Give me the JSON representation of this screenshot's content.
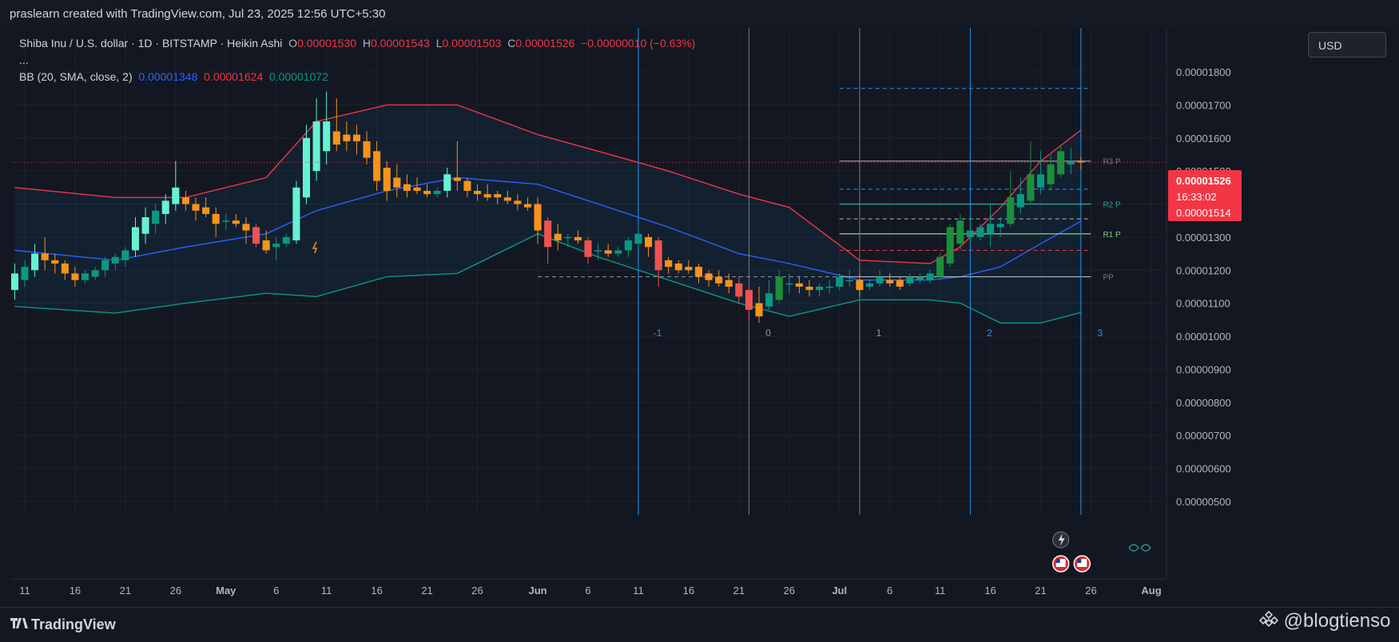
{
  "header": {
    "credit": "praslearn created with TradingView.com, Jul 23, 2025 12:56 UTC+5:30"
  },
  "legend": {
    "title": "Shiba Inu / U.S. dollar · 1D · BITSTAMP · Heikin Ashi",
    "open_label": "O",
    "open": "0.00001530",
    "high_label": "H",
    "high": "0.00001543",
    "low_label": "L",
    "low": "0.00001503",
    "close_label": "C",
    "close": "0.00001526",
    "change": "−0.00000010 (−0.63%)",
    "more": "...",
    "indicator": "BB (20, SMA, close, 2)",
    "bb_basis": "0.00001348",
    "bb_upper": "0.00001624",
    "bb_lower": "0.00001072"
  },
  "currency_button": "USD",
  "price_tag": {
    "price": "0.00001526",
    "countdown": "16:33:02",
    "low_tag": "0.00001514"
  },
  "pivot_labels": {
    "r3": "R3 P",
    "r2": "R2 P",
    "r1": "R1 P",
    "pp": "PP"
  },
  "cycle_labels": [
    "-1",
    "0",
    "1",
    "2",
    "3"
  ],
  "footer": {
    "brand": "TradingView",
    "watermark": "@blogtienso"
  },
  "colors": {
    "bg": "#131722",
    "bull_strong": "#089981",
    "bull": "#26a69a",
    "bull_light": "#66f2d0",
    "bear": "#f7931a",
    "bear_red": "#ef5350",
    "bb_upper": "#f23645",
    "bb_basis": "#2962ff",
    "bb_lower": "#089981",
    "fib_line": "#2196f3"
  },
  "chart_data": {
    "type": "candlestick",
    "title": "Shiba Inu / U.S. dollar · 1D · BITSTAMP · Heikin Ashi",
    "y_axis": {
      "min": 4.5e-06,
      "max": 1.9e-06,
      "tick_labels": [
        "0.00001800",
        "0.00001700",
        "0.00001600",
        "0.00001500",
        "0.00001400",
        "0.00001300",
        "0.00001200",
        "0.00001100",
        "0.00001000",
        "0.00000900",
        "0.00000800",
        "0.00000700",
        "0.00000600",
        "0.00000500"
      ],
      "tick_values": [
        1.8e-05,
        1.7e-05,
        1.6e-05,
        1.5e-05,
        1.4e-05,
        1.3e-05,
        1.2e-05,
        1.1e-05,
        1e-05,
        9e-06,
        8e-06,
        7e-06,
        6e-06,
        5e-06
      ]
    },
    "x_axis": {
      "tick_labels": [
        "11",
        "16",
        "21",
        "26",
        "May",
        "6",
        "11",
        "16",
        "21",
        "26",
        "Jun",
        "6",
        "11",
        "16",
        "21",
        "26",
        "Jul",
        "6",
        "11",
        "16",
        "21",
        "26",
        "Aug"
      ],
      "tick_dates": [
        "2025-04-11",
        "2025-04-16",
        "2025-04-21",
        "2025-04-26",
        "2025-05-01",
        "2025-05-06",
        "2025-05-11",
        "2025-05-16",
        "2025-05-21",
        "2025-05-26",
        "2025-06-01",
        "2025-06-06",
        "2025-06-11",
        "2025-06-16",
        "2025-06-21",
        "2025-06-26",
        "2025-07-01",
        "2025-07-06",
        "2025-07-11",
        "2025-07-16",
        "2025-07-21",
        "2025-07-26",
        "2025-08-01"
      ],
      "range": [
        "2025-04-10",
        "2025-08-01"
      ]
    },
    "candles": [
      {
        "date": "2025-04-10",
        "o": 1.14e-05,
        "h": 1.22e-05,
        "l": 1.11e-05,
        "c": 1.19e-05
      },
      {
        "date": "2025-04-11",
        "o": 1.17e-05,
        "h": 1.23e-05,
        "l": 1.15e-05,
        "c": 1.21e-05
      },
      {
        "date": "2025-04-12",
        "o": 1.2e-05,
        "h": 1.28e-05,
        "l": 1.18e-05,
        "c": 1.25e-05
      },
      {
        "date": "2025-04-13",
        "o": 1.25e-05,
        "h": 1.3e-05,
        "l": 1.2e-05,
        "c": 1.23e-05
      },
      {
        "date": "2025-04-14",
        "o": 1.23e-05,
        "h": 1.25e-05,
        "l": 1.19e-05,
        "c": 1.22e-05
      },
      {
        "date": "2025-04-15",
        "o": 1.22e-05,
        "h": 1.23e-05,
        "l": 1.17e-05,
        "c": 1.19e-05
      },
      {
        "date": "2025-04-16",
        "o": 1.19e-05,
        "h": 1.21e-05,
        "l": 1.15e-05,
        "c": 1.17e-05
      },
      {
        "date": "2025-04-17",
        "o": 1.17e-05,
        "h": 1.2e-05,
        "l": 1.16e-05,
        "c": 1.19e-05
      },
      {
        "date": "2025-04-18",
        "o": 1.18e-05,
        "h": 1.21e-05,
        "l": 1.17e-05,
        "c": 1.2e-05
      },
      {
        "date": "2025-04-19",
        "o": 1.2e-05,
        "h": 1.24e-05,
        "l": 1.18e-05,
        "c": 1.23e-05
      },
      {
        "date": "2025-04-20",
        "o": 1.22e-05,
        "h": 1.25e-05,
        "l": 1.2e-05,
        "c": 1.24e-05
      },
      {
        "date": "2025-04-21",
        "o": 1.23e-05,
        "h": 1.27e-05,
        "l": 1.21e-05,
        "c": 1.26e-05
      },
      {
        "date": "2025-04-22",
        "o": 1.26e-05,
        "h": 1.36e-05,
        "l": 1.24e-05,
        "c": 1.33e-05
      },
      {
        "date": "2025-04-23",
        "o": 1.31e-05,
        "h": 1.39e-05,
        "l": 1.28e-05,
        "c": 1.36e-05
      },
      {
        "date": "2025-04-24",
        "o": 1.34e-05,
        "h": 1.4e-05,
        "l": 1.31e-05,
        "c": 1.38e-05
      },
      {
        "date": "2025-04-25",
        "o": 1.37e-05,
        "h": 1.43e-05,
        "l": 1.34e-05,
        "c": 1.41e-05
      },
      {
        "date": "2025-04-26",
        "o": 1.4e-05,
        "h": 1.53e-05,
        "l": 1.38e-05,
        "c": 1.45e-05
      },
      {
        "date": "2025-04-27",
        "o": 1.42e-05,
        "h": 1.44e-05,
        "l": 1.38e-05,
        "c": 1.4e-05
      },
      {
        "date": "2025-04-28",
        "o": 1.4e-05,
        "h": 1.42e-05,
        "l": 1.35e-05,
        "c": 1.38e-05
      },
      {
        "date": "2025-04-29",
        "o": 1.39e-05,
        "h": 1.42e-05,
        "l": 1.36e-05,
        "c": 1.37e-05
      },
      {
        "date": "2025-04-30",
        "o": 1.37e-05,
        "h": 1.39e-05,
        "l": 1.3e-05,
        "c": 1.34e-05
      },
      {
        "date": "2025-05-01",
        "o": 1.35e-05,
        "h": 1.37e-05,
        "l": 1.32e-05,
        "c": 1.35e-05
      },
      {
        "date": "2025-05-02",
        "o": 1.35e-05,
        "h": 1.37e-05,
        "l": 1.33e-05,
        "c": 1.34e-05
      },
      {
        "date": "2025-05-03",
        "o": 1.34e-05,
        "h": 1.36e-05,
        "l": 1.28e-05,
        "c": 1.32e-05
      },
      {
        "date": "2025-05-04",
        "o": 1.33e-05,
        "h": 1.34e-05,
        "l": 1.27e-05,
        "c": 1.28e-05
      },
      {
        "date": "2025-05-05",
        "o": 1.29e-05,
        "h": 1.32e-05,
        "l": 1.25e-05,
        "c": 1.26e-05
      },
      {
        "date": "2025-05-06",
        "o": 1.27e-05,
        "h": 1.3e-05,
        "l": 1.23e-05,
        "c": 1.28e-05
      },
      {
        "date": "2025-05-07",
        "o": 1.28e-05,
        "h": 1.31e-05,
        "l": 1.27e-05,
        "c": 1.3e-05
      },
      {
        "date": "2025-05-08",
        "o": 1.29e-05,
        "h": 1.47e-05,
        "l": 1.28e-05,
        "c": 1.45e-05
      },
      {
        "date": "2025-05-09",
        "o": 1.42e-05,
        "h": 1.64e-05,
        "l": 1.4e-05,
        "c": 1.6e-05
      },
      {
        "date": "2025-05-10",
        "o": 1.5e-05,
        "h": 1.72e-05,
        "l": 1.47e-05,
        "c": 1.65e-05
      },
      {
        "date": "2025-05-11",
        "o": 1.56e-05,
        "h": 1.74e-05,
        "l": 1.52e-05,
        "c": 1.65e-05
      },
      {
        "date": "2025-05-12",
        "o": 1.62e-05,
        "h": 1.72e-05,
        "l": 1.56e-05,
        "c": 1.58e-05
      },
      {
        "date": "2025-05-13",
        "o": 1.61e-05,
        "h": 1.65e-05,
        "l": 1.56e-05,
        "c": 1.59e-05
      },
      {
        "date": "2025-05-14",
        "o": 1.61e-05,
        "h": 1.64e-05,
        "l": 1.55e-05,
        "c": 1.59e-05
      },
      {
        "date": "2025-05-15",
        "o": 1.59e-05,
        "h": 1.62e-05,
        "l": 1.52e-05,
        "c": 1.54e-05
      },
      {
        "date": "2025-05-16",
        "o": 1.56e-05,
        "h": 1.59e-05,
        "l": 1.44e-05,
        "c": 1.47e-05
      },
      {
        "date": "2025-05-17",
        "o": 1.51e-05,
        "h": 1.53e-05,
        "l": 1.41e-05,
        "c": 1.44e-05
      },
      {
        "date": "2025-05-18",
        "o": 1.48e-05,
        "h": 1.52e-05,
        "l": 1.42e-05,
        "c": 1.45e-05
      },
      {
        "date": "2025-05-19",
        "o": 1.46e-05,
        "h": 1.49e-05,
        "l": 1.42e-05,
        "c": 1.44e-05
      },
      {
        "date": "2025-05-20",
        "o": 1.45e-05,
        "h": 1.48e-05,
        "l": 1.43e-05,
        "c": 1.44e-05
      },
      {
        "date": "2025-05-21",
        "o": 1.44e-05,
        "h": 1.46e-05,
        "l": 1.42e-05,
        "c": 1.43e-05
      },
      {
        "date": "2025-05-22",
        "o": 1.43e-05,
        "h": 1.45e-05,
        "l": 1.42e-05,
        "c": 1.44e-05
      },
      {
        "date": "2025-05-23",
        "o": 1.44e-05,
        "h": 1.51e-05,
        "l": 1.42e-05,
        "c": 1.49e-05
      },
      {
        "date": "2025-05-24",
        "o": 1.48e-05,
        "h": 1.59e-05,
        "l": 1.44e-05,
        "c": 1.47e-05
      },
      {
        "date": "2025-05-25",
        "o": 1.47e-05,
        "h": 1.48e-05,
        "l": 1.42e-05,
        "c": 1.44e-05
      },
      {
        "date": "2025-05-26",
        "o": 1.44e-05,
        "h": 1.46e-05,
        "l": 1.41e-05,
        "c": 1.43e-05
      },
      {
        "date": "2025-05-27",
        "o": 1.43e-05,
        "h": 1.46e-05,
        "l": 1.41e-05,
        "c": 1.42e-05
      },
      {
        "date": "2025-05-28",
        "o": 1.43e-05,
        "h": 1.44e-05,
        "l": 1.4e-05,
        "c": 1.42e-05
      },
      {
        "date": "2025-05-29",
        "o": 1.42e-05,
        "h": 1.44e-05,
        "l": 1.4e-05,
        "c": 1.41e-05
      },
      {
        "date": "2025-05-30",
        "o": 1.41e-05,
        "h": 1.43e-05,
        "l": 1.38e-05,
        "c": 1.4e-05
      },
      {
        "date": "2025-05-31",
        "o": 1.4e-05,
        "h": 1.42e-05,
        "l": 1.38e-05,
        "c": 1.39e-05
      },
      {
        "date": "2025-06-01",
        "o": 1.4e-05,
        "h": 1.42e-05,
        "l": 1.28e-05,
        "c": 1.32e-05
      },
      {
        "date": "2025-06-02",
        "o": 1.35e-05,
        "h": 1.36e-05,
        "l": 1.22e-05,
        "c": 1.27e-05
      },
      {
        "date": "2025-06-03",
        "o": 1.31e-05,
        "h": 1.34e-05,
        "l": 1.26e-05,
        "c": 1.29e-05
      },
      {
        "date": "2025-06-04",
        "o": 1.3e-05,
        "h": 1.31e-05,
        "l": 1.27e-05,
        "c": 1.3e-05
      },
      {
        "date": "2025-06-05",
        "o": 1.3e-05,
        "h": 1.32e-05,
        "l": 1.28e-05,
        "c": 1.29e-05
      },
      {
        "date": "2025-06-06",
        "o": 1.29e-05,
        "h": 1.3e-05,
        "l": 1.22e-05,
        "c": 1.24e-05
      },
      {
        "date": "2025-06-07",
        "o": 1.26e-05,
        "h": 1.28e-05,
        "l": 1.23e-05,
        "c": 1.26e-05
      },
      {
        "date": "2025-06-08",
        "o": 1.26e-05,
        "h": 1.28e-05,
        "l": 1.24e-05,
        "c": 1.25e-05
      },
      {
        "date": "2025-06-09",
        "o": 1.25e-05,
        "h": 1.27e-05,
        "l": 1.24e-05,
        "c": 1.26e-05
      },
      {
        "date": "2025-06-10",
        "o": 1.26e-05,
        "h": 1.3e-05,
        "l": 1.24e-05,
        "c": 1.29e-05
      },
      {
        "date": "2025-06-11",
        "o": 1.28e-05,
        "h": 1.33e-05,
        "l": 1.27e-05,
        "c": 1.31e-05
      },
      {
        "date": "2025-06-12",
        "o": 1.3e-05,
        "h": 1.31e-05,
        "l": 1.24e-05,
        "c": 1.27e-05
      },
      {
        "date": "2025-06-13",
        "o": 1.29e-05,
        "h": 1.3e-05,
        "l": 1.15e-05,
        "c": 1.2e-05
      },
      {
        "date": "2025-06-14",
        "o": 1.23e-05,
        "h": 1.24e-05,
        "l": 1.19e-05,
        "c": 1.21e-05
      },
      {
        "date": "2025-06-15",
        "o": 1.22e-05,
        "h": 1.23e-05,
        "l": 1.19e-05,
        "c": 1.2e-05
      },
      {
        "date": "2025-06-16",
        "o": 1.21e-05,
        "h": 1.23e-05,
        "l": 1.19e-05,
        "c": 1.2e-05
      },
      {
        "date": "2025-06-17",
        "o": 1.21e-05,
        "h": 1.22e-05,
        "l": 1.16e-05,
        "c": 1.18e-05
      },
      {
        "date": "2025-06-18",
        "o": 1.19e-05,
        "h": 1.2e-05,
        "l": 1.15e-05,
        "c": 1.17e-05
      },
      {
        "date": "2025-06-19",
        "o": 1.18e-05,
        "h": 1.2e-05,
        "l": 1.15e-05,
        "c": 1.16e-05
      },
      {
        "date": "2025-06-20",
        "o": 1.17e-05,
        "h": 1.19e-05,
        "l": 1.13e-05,
        "c": 1.15e-05
      },
      {
        "date": "2025-06-21",
        "o": 1.16e-05,
        "h": 1.18e-05,
        "l": 1.1e-05,
        "c": 1.12e-05
      },
      {
        "date": "2025-06-22",
        "o": 1.14e-05,
        "h": 1.15e-05,
        "l": 1.05e-05,
        "c": 1.08e-05
      },
      {
        "date": "2025-06-23",
        "o": 1.1e-05,
        "h": 1.15e-05,
        "l": 1.04e-05,
        "c": 1.06e-05
      },
      {
        "date": "2025-06-24",
        "o": 1.09e-05,
        "h": 1.17e-05,
        "l": 1.08e-05,
        "c": 1.13e-05
      },
      {
        "date": "2025-06-25",
        "o": 1.11e-05,
        "h": 1.2e-05,
        "l": 1.1e-05,
        "c": 1.18e-05
      },
      {
        "date": "2025-06-26",
        "o": 1.16e-05,
        "h": 1.19e-05,
        "l": 1.13e-05,
        "c": 1.16e-05
      },
      {
        "date": "2025-06-27",
        "o": 1.16e-05,
        "h": 1.18e-05,
        "l": 1.13e-05,
        "c": 1.15e-05
      },
      {
        "date": "2025-06-28",
        "o": 1.15e-05,
        "h": 1.17e-05,
        "l": 1.12e-05,
        "c": 1.14e-05
      },
      {
        "date": "2025-06-29",
        "o": 1.14e-05,
        "h": 1.16e-05,
        "l": 1.12e-05,
        "c": 1.15e-05
      },
      {
        "date": "2025-06-30",
        "o": 1.15e-05,
        "h": 1.17e-05,
        "l": 1.13e-05,
        "c": 1.15e-05
      },
      {
        "date": "2025-07-01",
        "o": 1.15e-05,
        "h": 1.19e-05,
        "l": 1.14e-05,
        "c": 1.18e-05
      },
      {
        "date": "2025-07-02",
        "o": 1.17e-05,
        "h": 1.2e-05,
        "l": 1.15e-05,
        "c": 1.17e-05
      },
      {
        "date": "2025-07-03",
        "o": 1.17e-05,
        "h": 1.19e-05,
        "l": 1.12e-05,
        "c": 1.14e-05
      },
      {
        "date": "2025-07-04",
        "o": 1.15e-05,
        "h": 1.17e-05,
        "l": 1.14e-05,
        "c": 1.16e-05
      },
      {
        "date": "2025-07-05",
        "o": 1.16e-05,
        "h": 1.2e-05,
        "l": 1.15e-05,
        "c": 1.18e-05
      },
      {
        "date": "2025-07-06",
        "o": 1.17e-05,
        "h": 1.19e-05,
        "l": 1.15e-05,
        "c": 1.16e-05
      },
      {
        "date": "2025-07-07",
        "o": 1.17e-05,
        "h": 1.18e-05,
        "l": 1.14e-05,
        "c": 1.15e-05
      },
      {
        "date": "2025-07-08",
        "o": 1.16e-05,
        "h": 1.19e-05,
        "l": 1.15e-05,
        "c": 1.18e-05
      },
      {
        "date": "2025-07-09",
        "o": 1.17e-05,
        "h": 1.19e-05,
        "l": 1.16e-05,
        "c": 1.18e-05
      },
      {
        "date": "2025-07-10",
        "o": 1.17e-05,
        "h": 1.2e-05,
        "l": 1.16e-05,
        "c": 1.19e-05
      },
      {
        "date": "2025-07-11",
        "o": 1.18e-05,
        "h": 1.25e-05,
        "l": 1.17e-05,
        "c": 1.24e-05
      },
      {
        "date": "2025-07-12",
        "o": 1.22e-05,
        "h": 1.34e-05,
        "l": 1.21e-05,
        "c": 1.33e-05
      },
      {
        "date": "2025-07-13",
        "o": 1.28e-05,
        "h": 1.37e-05,
        "l": 1.26e-05,
        "c": 1.35e-05
      },
      {
        "date": "2025-07-14",
        "o": 1.3e-05,
        "h": 1.36e-05,
        "l": 1.28e-05,
        "c": 1.32e-05
      },
      {
        "date": "2025-07-15",
        "o": 1.3e-05,
        "h": 1.34e-05,
        "l": 1.29e-05,
        "c": 1.33e-05
      },
      {
        "date": "2025-07-16",
        "o": 1.31e-05,
        "h": 1.4e-05,
        "l": 1.27e-05,
        "c": 1.34e-05
      },
      {
        "date": "2025-07-17",
        "o": 1.33e-05,
        "h": 1.36e-05,
        "l": 1.3e-05,
        "c": 1.34e-05
      },
      {
        "date": "2025-07-18",
        "o": 1.34e-05,
        "h": 1.5e-05,
        "l": 1.33e-05,
        "c": 1.42e-05
      },
      {
        "date": "2025-07-19",
        "o": 1.39e-05,
        "h": 1.48e-05,
        "l": 1.37e-05,
        "c": 1.43e-05
      },
      {
        "date": "2025-07-20",
        "o": 1.41e-05,
        "h": 1.59e-05,
        "l": 1.4e-05,
        "c": 1.49e-05
      },
      {
        "date": "2025-07-21",
        "o": 1.45e-05,
        "h": 1.56e-05,
        "l": 1.43e-05,
        "c": 1.49e-05
      },
      {
        "date": "2025-07-22",
        "o": 1.46e-05,
        "h": 1.55e-05,
        "l": 1.44e-05,
        "c": 1.52e-05
      },
      {
        "date": "2025-07-23",
        "o": 1.49e-05,
        "h": 1.58e-05,
        "l": 1.48e-05,
        "c": 1.56e-05
      },
      {
        "date": "2025-07-24",
        "o": 1.52e-05,
        "h": 1.57e-05,
        "l": 1.49e-05,
        "c": 1.53e-05
      },
      {
        "date": "2025-07-25",
        "o": 1.53e-05,
        "h": 1.543e-05,
        "l": 1.503e-05,
        "c": 1.526e-05
      }
    ],
    "bollinger_bands": {
      "period": 20,
      "source": "close",
      "stddev": 2,
      "dates": [
        "2025-04-10",
        "2025-04-20",
        "2025-04-27",
        "2025-05-05",
        "2025-05-10",
        "2025-05-17",
        "2025-05-24",
        "2025-06-01",
        "2025-06-07",
        "2025-06-14",
        "2025-06-21",
        "2025-06-26",
        "2025-07-03",
        "2025-07-10",
        "2025-07-13",
        "2025-07-17",
        "2025-07-21",
        "2025-07-25"
      ],
      "upper": [
        1.45e-05,
        1.42e-05,
        1.42e-05,
        1.48e-05,
        1.65e-05,
        1.7e-05,
        1.7e-05,
        1.61e-05,
        1.56e-05,
        1.5e-05,
        1.43e-05,
        1.39e-05,
        1.23e-05,
        1.22e-05,
        1.27e-05,
        1.39e-05,
        1.53e-05,
        1.624e-05
      ],
      "basis": [
        1.26e-05,
        1.23e-05,
        1.27e-05,
        1.31e-05,
        1.38e-05,
        1.44e-05,
        1.48e-05,
        1.46e-05,
        1.4e-05,
        1.33e-05,
        1.25e-05,
        1.22e-05,
        1.17e-05,
        1.17e-05,
        1.18e-05,
        1.21e-05,
        1.28e-05,
        1.348e-05
      ],
      "lower": [
        1.09e-05,
        1.07e-05,
        1.1e-05,
        1.13e-05,
        1.12e-05,
        1.18e-05,
        1.19e-05,
        1.31e-05,
        1.24e-05,
        1.17e-05,
        1.1e-05,
        1.06e-05,
        1.11e-05,
        1.11e-05,
        1.1e-05,
        1.04e-05,
        1.04e-05,
        1.072e-05
      ]
    },
    "pivot_levels": {
      "pp": 1.18e-05,
      "r1": 1.31e-05,
      "r2": 1.4e-05,
      "r3": 1.53e-05,
      "dashed": [
        1.75e-05,
        1.445e-05,
        1.355e-05,
        1.26e-05
      ]
    },
    "fib_time_zones": {
      "dates": [
        "2025-06-11",
        "2025-06-22",
        "2025-07-03",
        "2025-07-14",
        "2025-07-25"
      ],
      "labels": [
        "-1",
        "0",
        "1",
        "2",
        "3"
      ]
    },
    "last_price": 1.526e-05
  }
}
